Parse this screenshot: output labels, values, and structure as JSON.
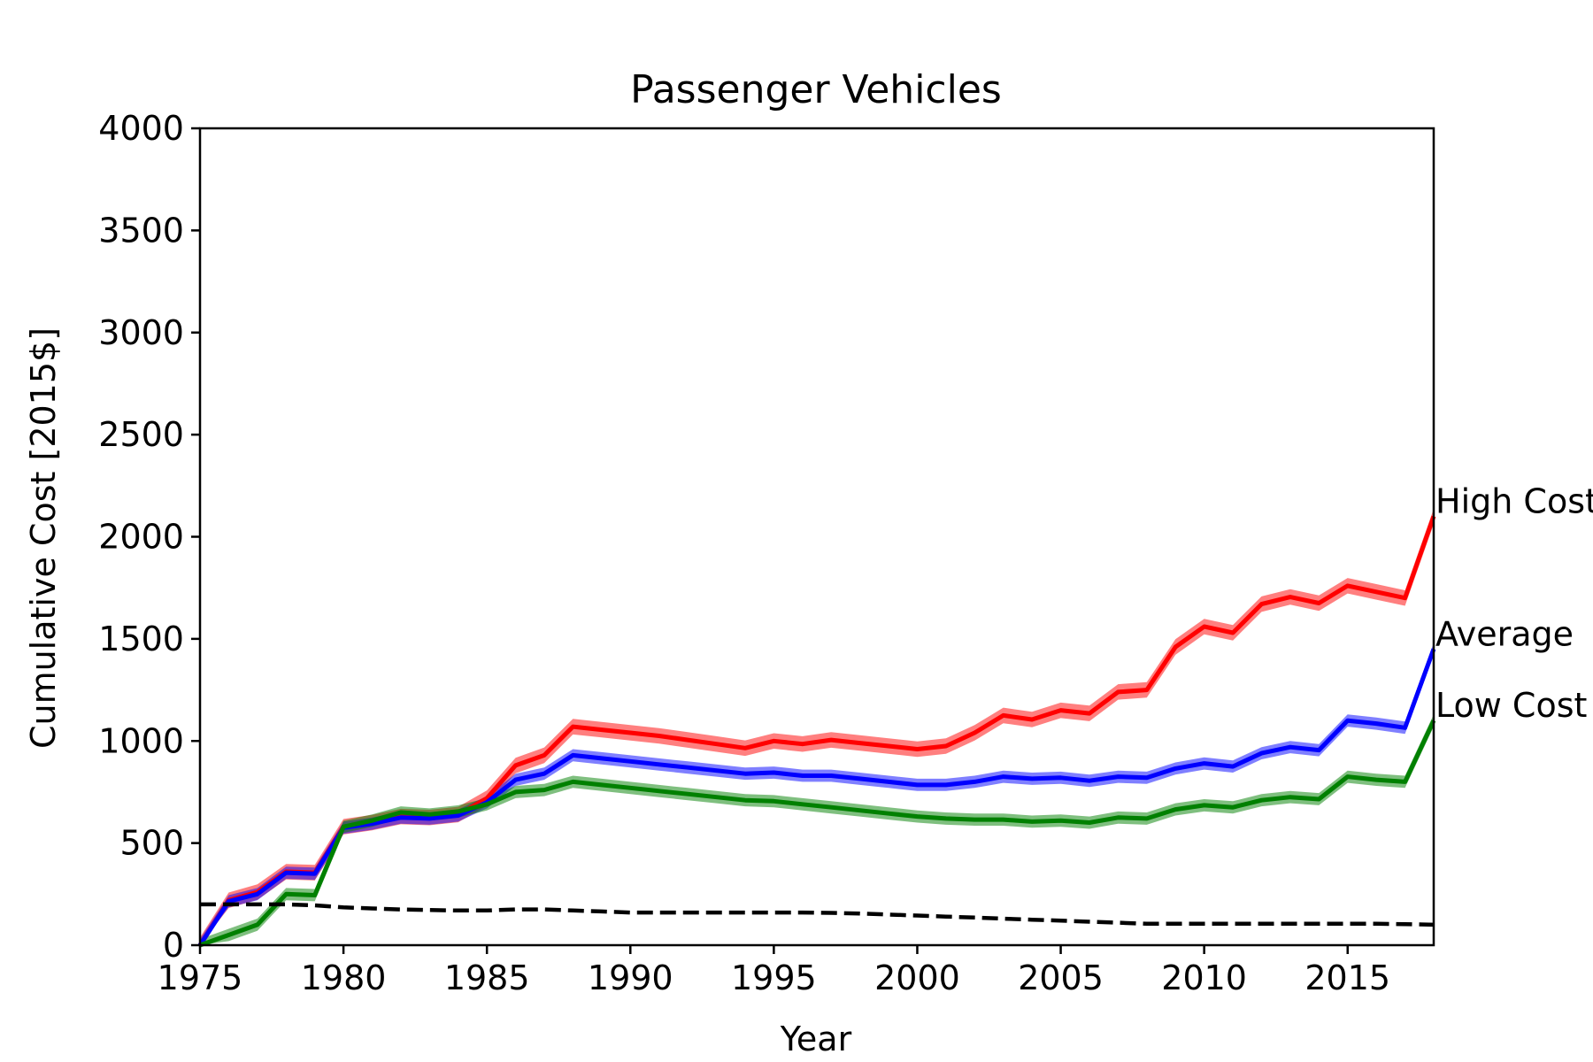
{
  "chart_data": {
    "type": "line",
    "title": "Passenger Vehicles",
    "xlabel": "Year",
    "ylabel": "Cumulative Cost [2015$]",
    "xlim": [
      1975,
      2018
    ],
    "ylim": [
      0,
      4000
    ],
    "xticks": [
      1975,
      1980,
      1985,
      1990,
      1995,
      2000,
      2005,
      2010,
      2015
    ],
    "yticks": [
      0,
      500,
      1000,
      1500,
      2000,
      2500,
      3000,
      3500,
      4000
    ],
    "grid": false,
    "legend": "none",
    "x": [
      1975,
      1976,
      1977,
      1978,
      1979,
      1980,
      1981,
      1982,
      1983,
      1984,
      1985,
      1986,
      1987,
      1988,
      1989,
      1990,
      1991,
      1992,
      1993,
      1994,
      1995,
      1996,
      1997,
      1998,
      1999,
      2000,
      2001,
      2002,
      2003,
      2004,
      2005,
      2006,
      2007,
      2008,
      2009,
      2010,
      2011,
      2012,
      2013,
      2014,
      2015,
      2016,
      2017,
      2018
    ],
    "series": [
      {
        "name": "High Cost",
        "color": "#ff0000",
        "band": 38,
        "values": [
          0,
          220,
          260,
          360,
          355,
          580,
          600,
          630,
          625,
          640,
          720,
          880,
          930,
          1070,
          1055,
          1040,
          1025,
          1005,
          985,
          965,
          1000,
          985,
          1005,
          990,
          975,
          960,
          975,
          1040,
          1125,
          1105,
          1150,
          1135,
          1240,
          1250,
          1460,
          1560,
          1530,
          1670,
          1705,
          1675,
          1760,
          1730,
          1700,
          2100
        ]
      },
      {
        "name": "Average",
        "color": "#0000ff",
        "band": 30,
        "values": [
          0,
          215,
          250,
          355,
          350,
          575,
          595,
          625,
          620,
          635,
          700,
          810,
          840,
          930,
          915,
          900,
          885,
          870,
          855,
          840,
          845,
          830,
          830,
          815,
          800,
          785,
          785,
          800,
          825,
          815,
          820,
          805,
          825,
          820,
          865,
          890,
          875,
          940,
          970,
          955,
          1100,
          1085,
          1065,
          1450
        ]
      },
      {
        "name": "Low Cost",
        "color": "#008000",
        "band": 30,
        "values": [
          0,
          50,
          100,
          250,
          245,
          580,
          610,
          650,
          640,
          655,
          690,
          750,
          760,
          800,
          785,
          770,
          755,
          740,
          725,
          710,
          705,
          690,
          675,
          660,
          645,
          630,
          620,
          615,
          615,
          605,
          610,
          600,
          625,
          620,
          665,
          685,
          675,
          710,
          725,
          715,
          825,
          810,
          800,
          1100
        ]
      },
      {
        "name": "",
        "color": "#000000",
        "dashed": true,
        "values": [
          200,
          200,
          200,
          200,
          195,
          185,
          180,
          175,
          172,
          170,
          170,
          175,
          175,
          170,
          165,
          160,
          160,
          160,
          160,
          160,
          160,
          160,
          158,
          155,
          150,
          145,
          140,
          135,
          130,
          125,
          120,
          115,
          110,
          105,
          105,
          105,
          105,
          105,
          105,
          105,
          105,
          105,
          103,
          100
        ]
      }
    ],
    "end_labels": [
      "High Cost",
      "Average",
      "Low Cost"
    ]
  }
}
